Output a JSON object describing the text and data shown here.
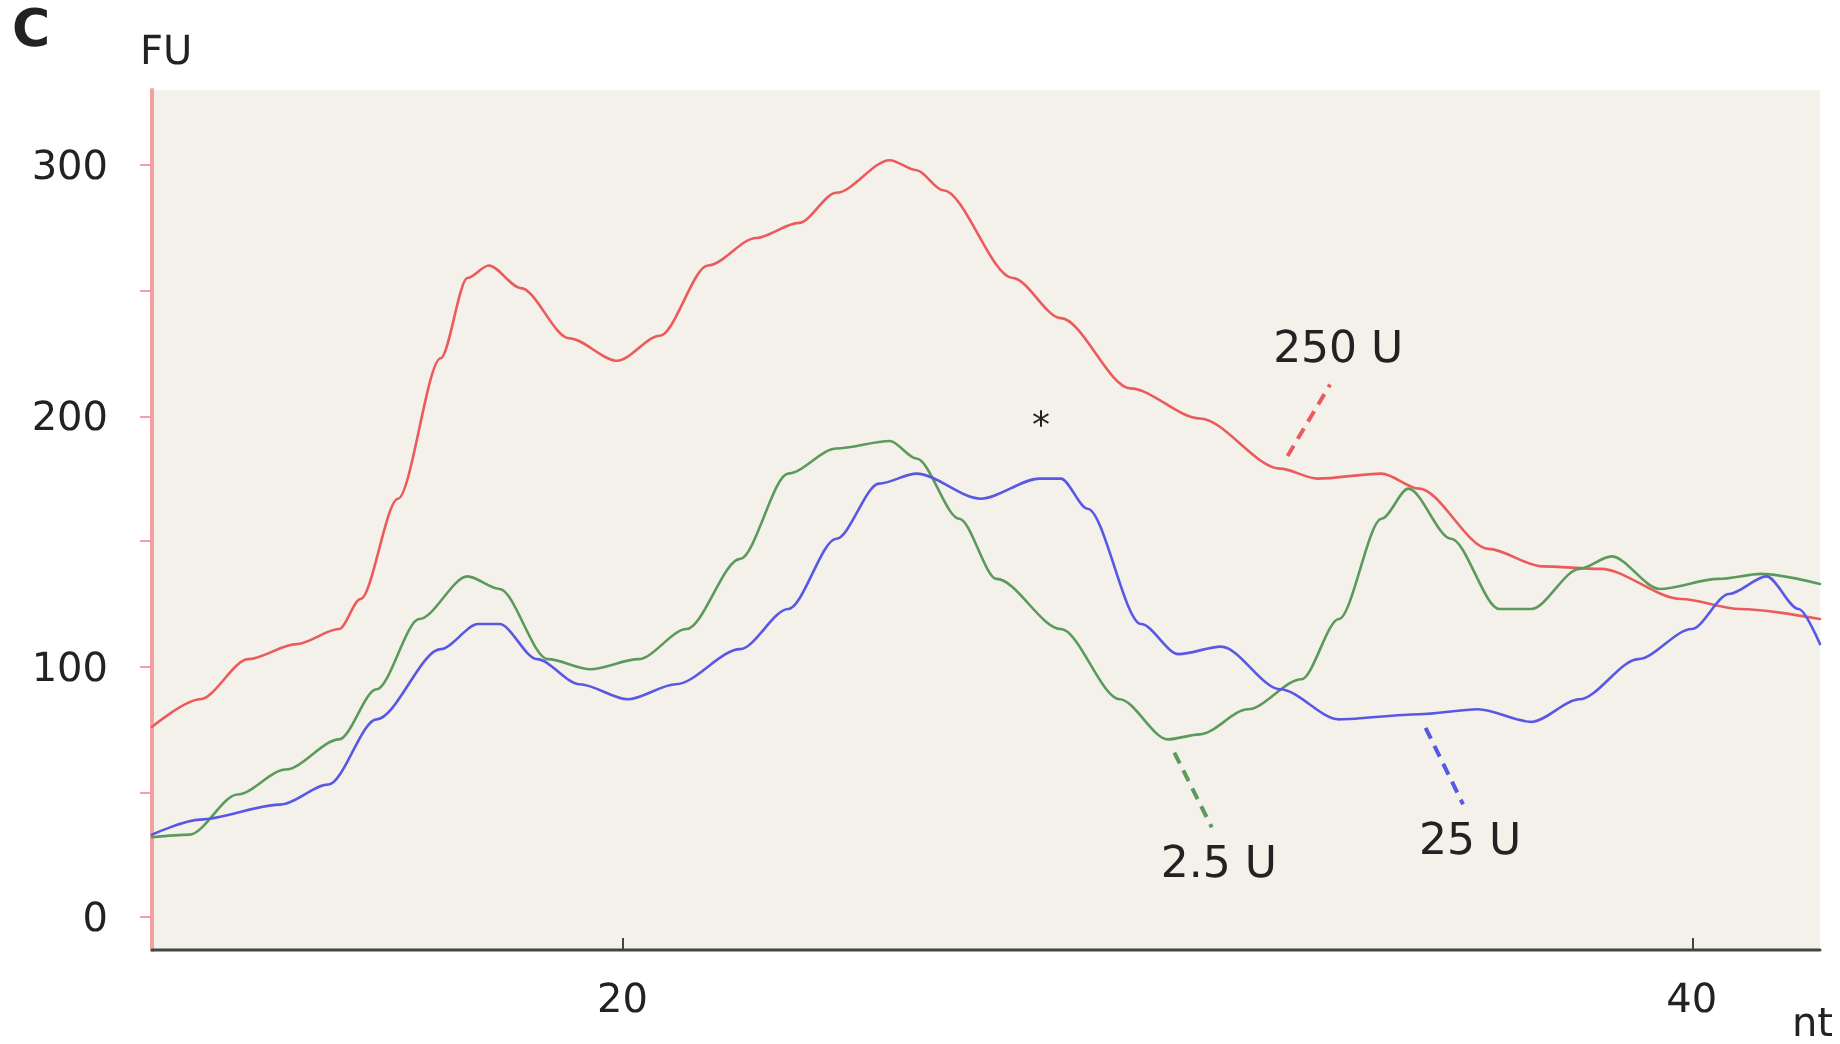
{
  "chart_data": {
    "type": "line",
    "xlabel": "nt",
    "ylabel": "FU",
    "annotations": [
      "C",
      "*"
    ],
    "xlim": [
      11.2,
      42.4
    ],
    "xticks": [
      20,
      40
    ],
    "ylim": [
      -13,
      330
    ],
    "yticks": [
      0,
      {
        "value": 50,
        "label": null
      },
      100,
      {
        "value": 150,
        "label": null
      },
      200,
      {
        "value": 250,
        "label": null
      },
      300
    ],
    "grid": false,
    "legend": "bottom right",
    "marker": "none",
    "line_style": "solid",
    "series": [
      {
        "name": "250 U",
        "color": "#ec5b5b",
        "x": [
          11.2,
          12.1,
          13.0,
          13.9,
          14.7,
          15.1,
          15.8,
          16.6,
          17.1,
          17.5,
          18.1,
          19.0,
          19.9,
          20.7,
          21.6,
          22.5,
          23.3,
          24.0,
          25.0,
          25.5,
          26.0,
          27.3,
          28.2,
          29.5,
          30.8,
          32.3,
          33.0,
          34.2,
          34.9,
          36.2,
          37.2,
          38.3,
          39.8,
          40.9,
          42.4
        ],
        "values": [
          76,
          87,
          103,
          109,
          115,
          127,
          167,
          223,
          255,
          260,
          251,
          231,
          222,
          232,
          260,
          271,
          277,
          289,
          302,
          298,
          290,
          255,
          239,
          211,
          199,
          179,
          175,
          177,
          171,
          147,
          140,
          139,
          127,
          123,
          119
        ]
      },
      {
        "name": "2.5 U",
        "color": "#5c9a5c",
        "x": [
          11.2,
          11.9,
          12.8,
          13.7,
          14.7,
          15.4,
          16.2,
          17.1,
          17.7,
          18.6,
          19.4,
          20.3,
          21.2,
          22.2,
          23.1,
          24.0,
          25.0,
          25.5,
          26.3,
          27.0,
          28.2,
          29.3,
          30.2,
          30.8,
          31.7,
          32.7,
          33.4,
          34.2,
          34.7,
          35.5,
          36.4,
          37.0,
          37.9,
          38.5,
          39.4,
          40.5,
          41.3,
          42.4
        ],
        "values": [
          32,
          33,
          49,
          59,
          71,
          91,
          119,
          136,
          131,
          103,
          99,
          103,
          115,
          143,
          177,
          187,
          190,
          183,
          159,
          135,
          115,
          87,
          71,
          73,
          83,
          95,
          119,
          159,
          171,
          151,
          123,
          123,
          139,
          144,
          131,
          135,
          137,
          133
        ]
      },
      {
        "name": "25 U",
        "color": "#5858e4",
        "x": [
          11.2,
          12.1,
          13.6,
          14.5,
          15.4,
          16.6,
          17.3,
          17.7,
          18.4,
          19.2,
          20.1,
          21.0,
          22.2,
          23.1,
          24.0,
          24.8,
          25.5,
          26.7,
          27.8,
          28.2,
          28.7,
          29.7,
          30.4,
          31.2,
          32.3,
          33.4,
          34.9,
          36.0,
          37.0,
          37.9,
          39.0,
          40.0,
          40.7,
          41.4,
          42.0,
          42.4
        ],
        "values": [
          33,
          39,
          45,
          53,
          79,
          107,
          117,
          117,
          103,
          93,
          87,
          93,
          107,
          123,
          151,
          173,
          177,
          167,
          175,
          175,
          163,
          117,
          105,
          108,
          91,
          79,
          81,
          83,
          78,
          87,
          103,
          115,
          129,
          136,
          123,
          109
        ]
      }
    ]
  }
}
